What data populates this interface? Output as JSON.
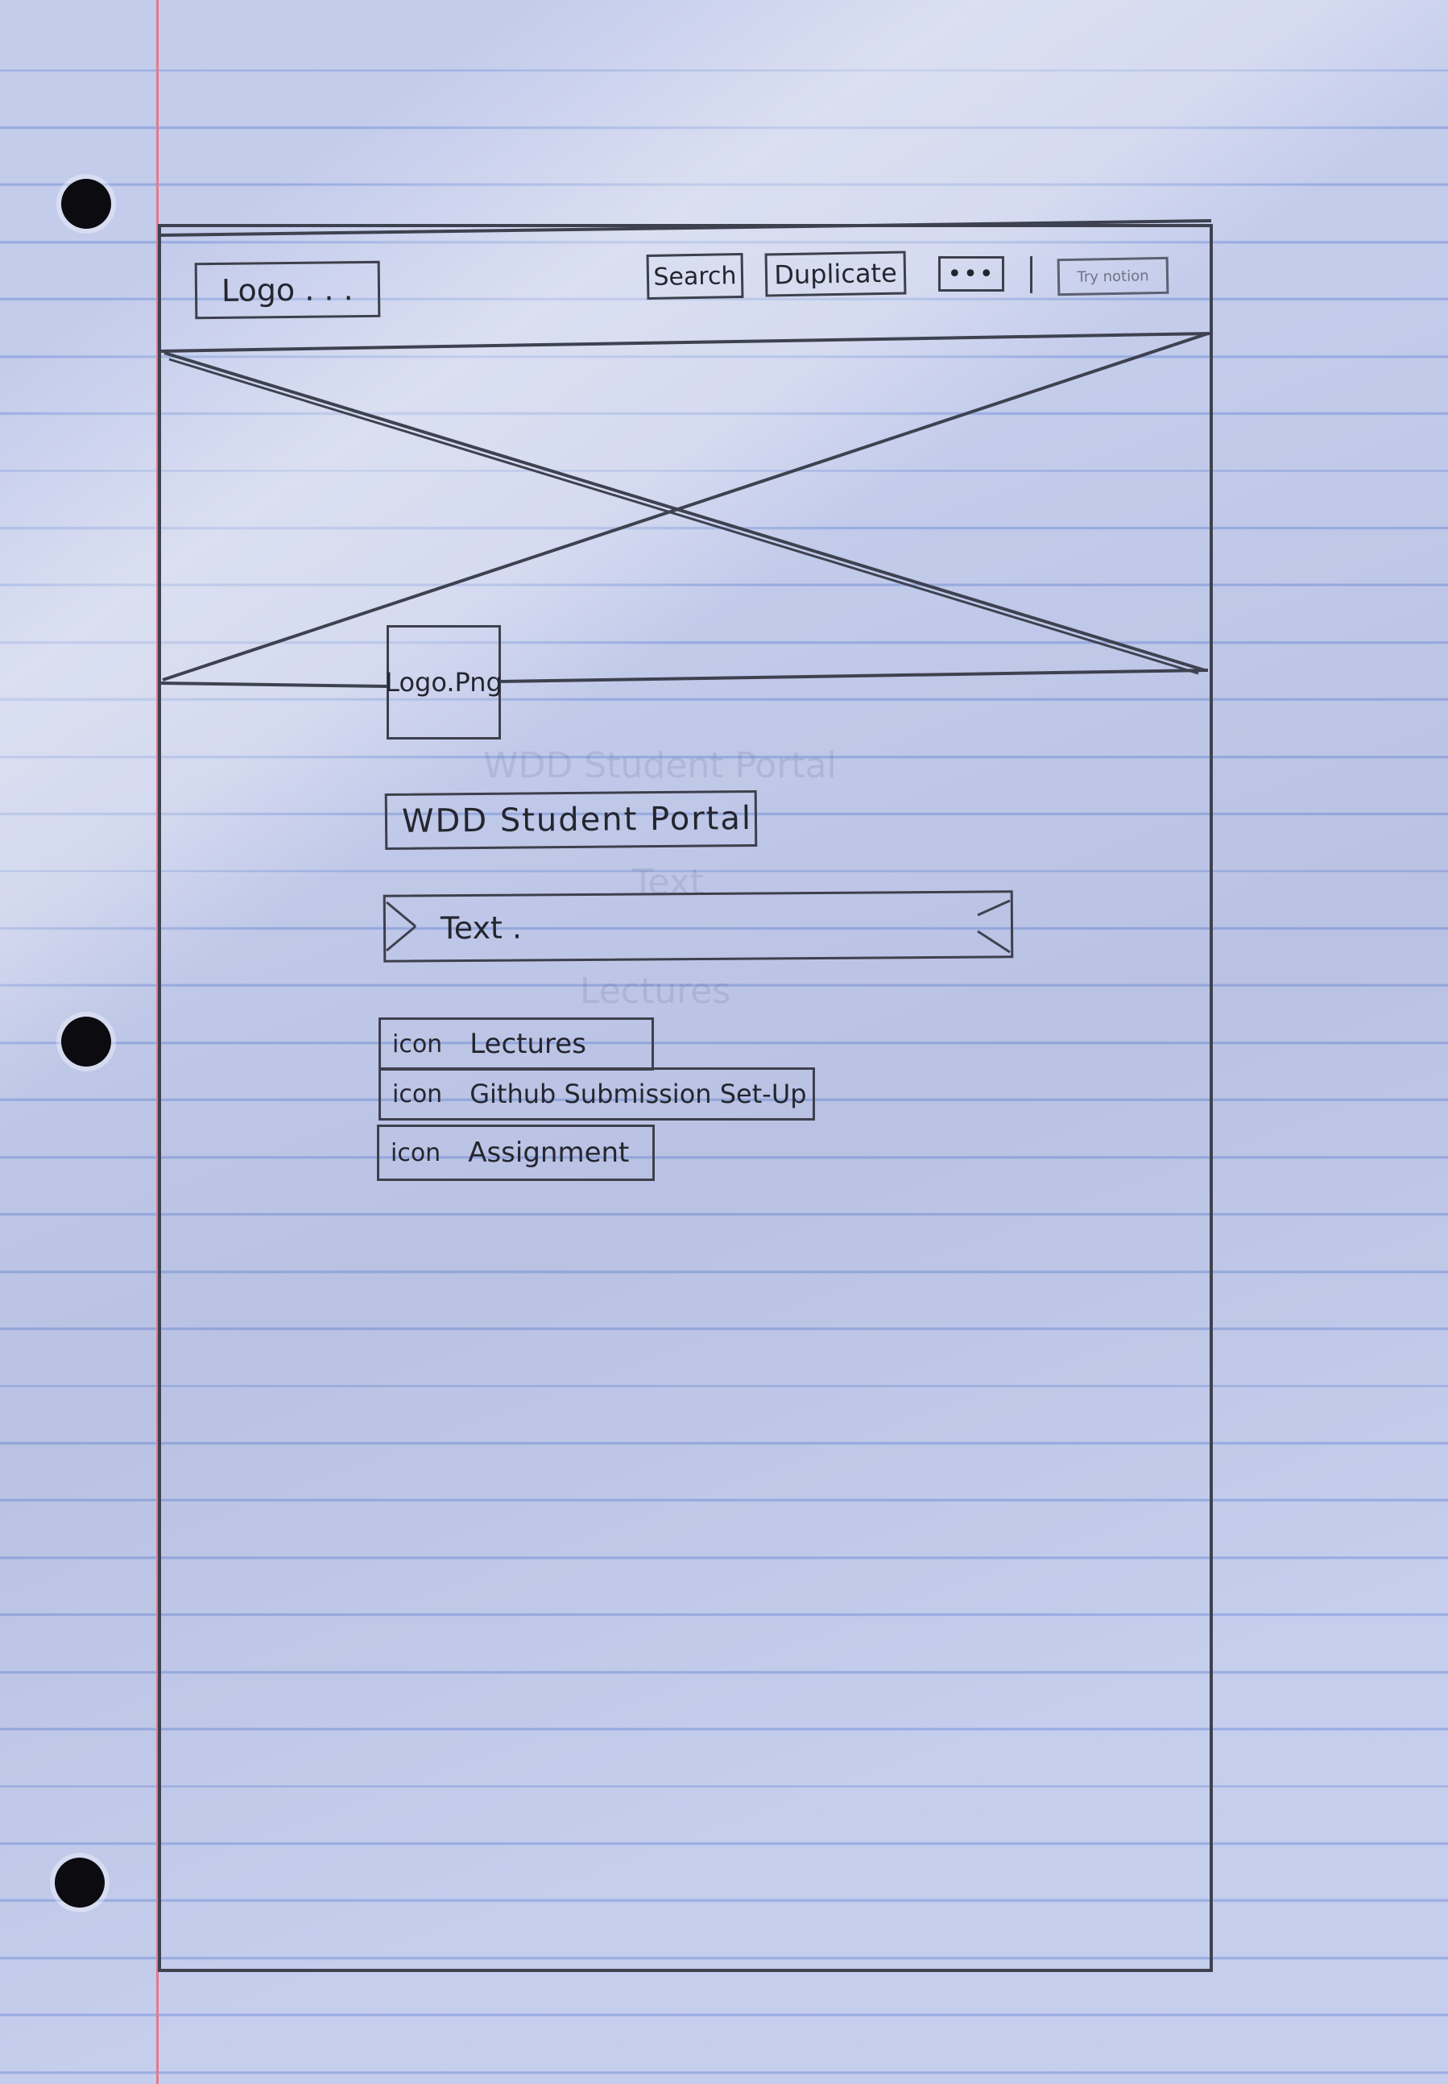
{
  "header": {
    "logo_label": "Logo . . .",
    "search_label": "Search",
    "duplicate_label": "Duplicate",
    "more_label": "•••",
    "try_notion_label": "Try notion"
  },
  "hero": {
    "image_placeholder": "banner-image-placeholder",
    "logo_label": "Logo.Png"
  },
  "main": {
    "title": "WDD Student Portal",
    "callout_text": "Text ."
  },
  "nav": {
    "items": [
      {
        "icon_label": "icon",
        "label": "Lectures"
      },
      {
        "icon_label": "icon",
        "label": "Github Submission Set-Up"
      },
      {
        "icon_label": "icon",
        "label": "Assignment"
      }
    ]
  },
  "colors": {
    "paper": "#cbd3f2",
    "rule_line": "#7896dc",
    "margin_line": "#e27a8e",
    "pencil": "#3d404c"
  }
}
